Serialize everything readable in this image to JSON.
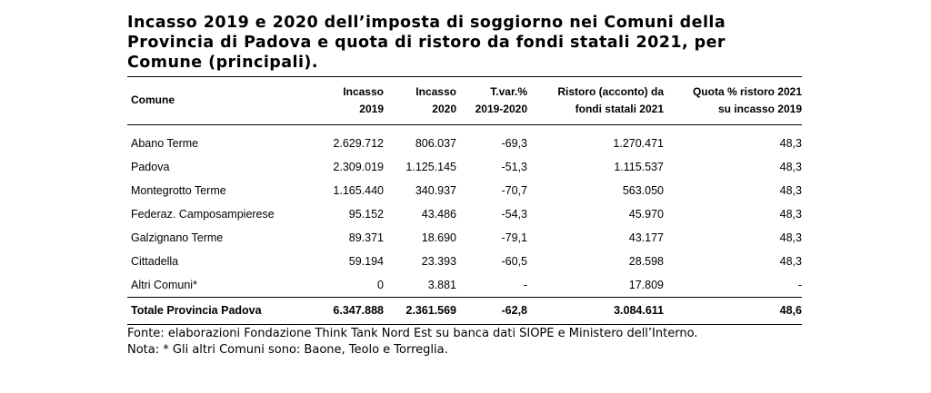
{
  "title": "Incasso 2019 e 2020 dell’imposta di soggiorno nei Comuni della Provincia di Padova e quota di ristoro da fondi statali 2021, per Comune (principali).",
  "table": {
    "headers": [
      {
        "line1": "Comune",
        "line2": ""
      },
      {
        "line1": "Incasso",
        "line2": "2019"
      },
      {
        "line1": "Incasso",
        "line2": "2020"
      },
      {
        "line1": "T.var.%",
        "line2": "2019-2020"
      },
      {
        "line1": "Ristoro (acconto) da",
        "line2": "fondi statali 2021"
      },
      {
        "line1": "Quota % ristoro 2021",
        "line2": "su incasso 2019"
      }
    ],
    "rows": [
      [
        "Abano Terme",
        "2.629.712",
        "806.037",
        "-69,3",
        "1.270.471",
        "48,3"
      ],
      [
        "Padova",
        "2.309.019",
        "1.125.145",
        "-51,3",
        "1.115.537",
        "48,3"
      ],
      [
        "Montegrotto Terme",
        "1.165.440",
        "340.937",
        "-70,7",
        "563.050",
        "48,3"
      ],
      [
        "Federaz. Camposampierese",
        "95.152",
        "43.486",
        "-54,3",
        "45.970",
        "48,3"
      ],
      [
        "Galzignano Terme",
        "89.371",
        "18.690",
        "-79,1",
        "43.177",
        "48,3"
      ],
      [
        "Cittadella",
        "59.194",
        "23.393",
        "-60,5",
        "28.598",
        "48,3"
      ],
      [
        "Altri Comuni*",
        "0",
        "3.881",
        "-",
        "17.809",
        "-"
      ]
    ],
    "total": [
      "Totale Provincia Padova",
      "6.347.888",
      "2.361.569",
      "-62,8",
      "3.084.611",
      "48,6"
    ]
  },
  "notes": {
    "source": "Fonte: elaborazioni Fondazione Think Tank Nord Est su banca dati SIOPE e Ministero dell’Interno.",
    "note": "Nota: * Gli altri Comuni sono: Baone, Teolo e Torreglia."
  }
}
